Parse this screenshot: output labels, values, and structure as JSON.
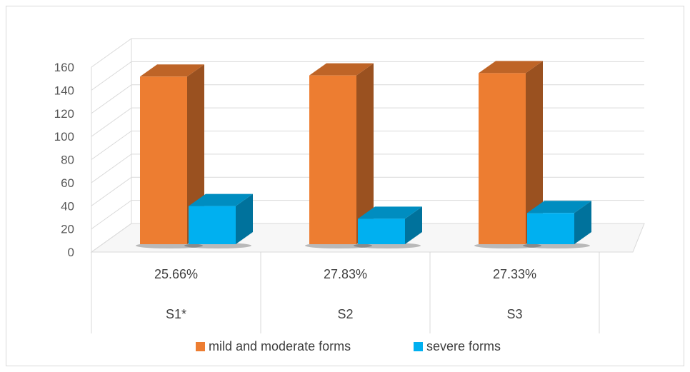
{
  "chart_data": {
    "type": "bar",
    "title": "",
    "xlabel": "",
    "ylabel": "",
    "categories": [
      "S1*",
      "S2",
      "S3"
    ],
    "category_percent_labels": [
      "25.66%",
      "27.83%",
      "27.33%"
    ],
    "series": [
      {
        "name": "mild and moderate forms",
        "values": [
          145,
          146,
          148
        ],
        "color": "#ed7d31"
      },
      {
        "name": "severe forms",
        "values": [
          33,
          22,
          27
        ],
        "color": "#00b0f0"
      }
    ],
    "ylim": [
      0,
      160
    ],
    "yticks": [
      0,
      20,
      40,
      60,
      80,
      100,
      120,
      140,
      160
    ],
    "grid": true,
    "legend_position": "bottom",
    "style": "3d-clustered-column"
  }
}
